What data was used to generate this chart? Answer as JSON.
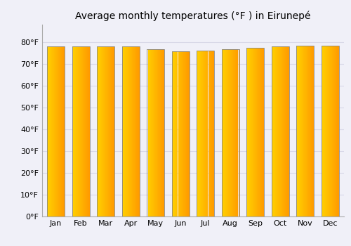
{
  "title": "Average monthly temperatures (°F ) in Eirunepé",
  "months": [
    "Jan",
    "Feb",
    "Mar",
    "Apr",
    "May",
    "Jun",
    "Jul",
    "Aug",
    "Sep",
    "Oct",
    "Nov",
    "Dec"
  ],
  "values": [
    78.1,
    78.1,
    78.1,
    77.9,
    76.8,
    75.7,
    76.1,
    76.6,
    77.5,
    78.1,
    78.3,
    78.3
  ],
  "bar_edge_color": "#888888",
  "ylim": [
    0,
    88
  ],
  "yticks": [
    0,
    10,
    20,
    30,
    40,
    50,
    60,
    70,
    80
  ],
  "ytick_labels": [
    "0°F",
    "10°F",
    "20°F",
    "30°F",
    "40°F",
    "50°F",
    "60°F",
    "70°F",
    "80°F"
  ],
  "grid_color": "#d8d8e8",
  "background_color": "#f0f0f8",
  "title_fontsize": 10,
  "tick_fontsize": 8,
  "bar_color_left": "#FFD000",
  "bar_color_right": "#FF9900",
  "bar_width": 0.7
}
